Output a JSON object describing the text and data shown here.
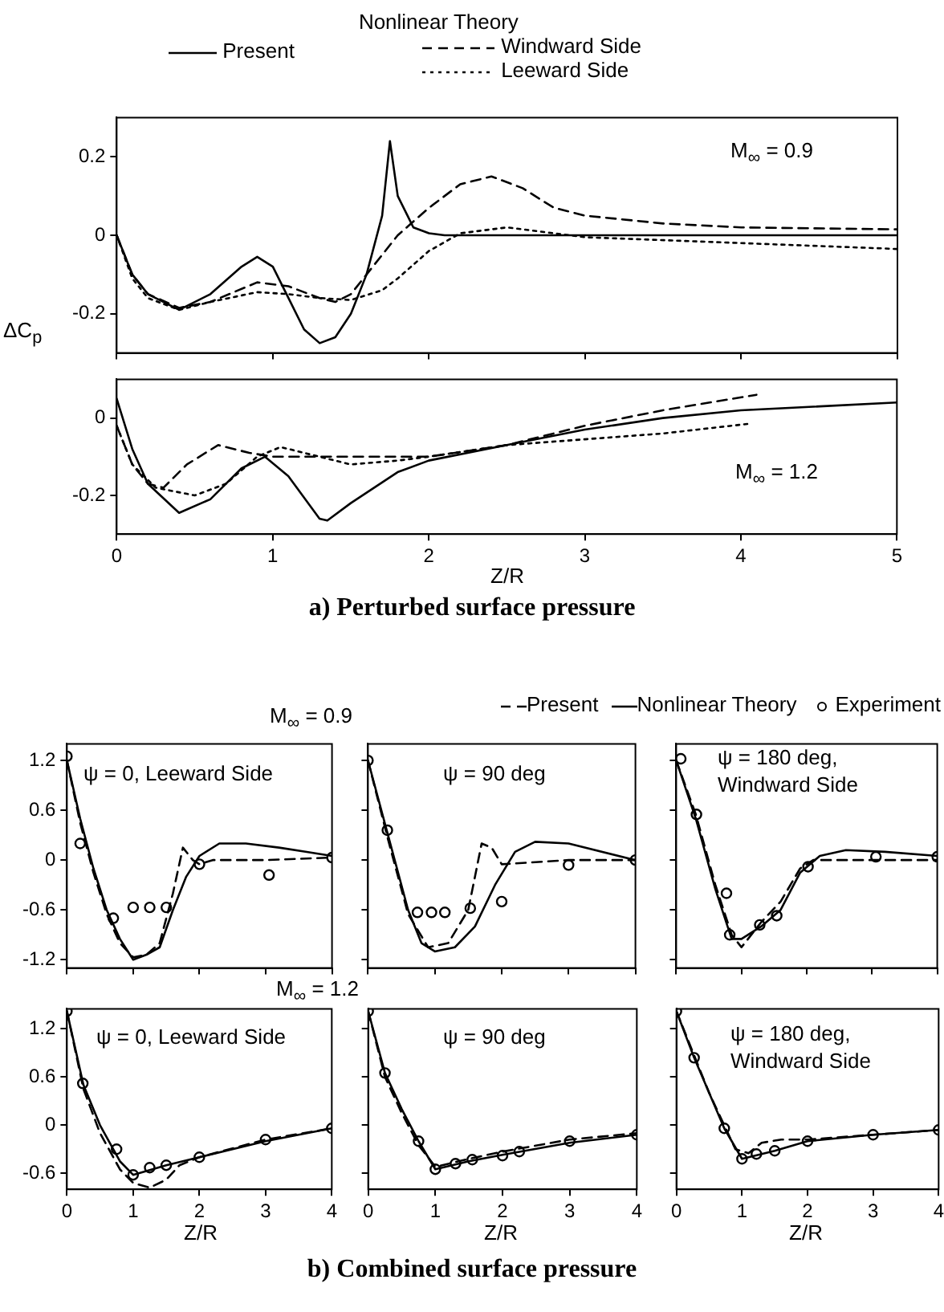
{
  "chart_data": [
    {
      "type": "line",
      "ylabel": "ΔC$_{p}$",
      "legend_title": "Nonlinear Theory",
      "legend": "top",
      "annotations": [
        "M$_{∞}$ = 0.9"
      ],
      "xlim": [
        0,
        5
      ],
      "xticks": [
        0,
        1,
        2,
        3,
        4,
        5
      ],
      "ylim": [
        -0.3,
        0.3
      ],
      "yticks": [
        -0.2,
        0,
        0.2
      ],
      "tick_labels": "y",
      "series": [
        {
          "name": "Present",
          "color": "#000000",
          "line_style": "solid",
          "x": [
            0,
            0.1,
            0.2,
            0.4,
            0.6,
            0.8,
            0.9,
            1.0,
            1.1,
            1.2,
            1.3,
            1.4,
            1.5,
            1.6,
            1.7,
            1.75,
            1.8,
            1.9,
            2.0,
            2.1,
            3,
            5
          ],
          "values": [
            0,
            -0.1,
            -0.15,
            -0.19,
            -0.15,
            -0.08,
            -0.055,
            -0.08,
            -0.16,
            -0.24,
            -0.275,
            -0.26,
            -0.2,
            -0.1,
            0.05,
            0.24,
            0.1,
            0.02,
            0.005,
            0,
            0,
            0
          ]
        },
        {
          "name": "Windward Side",
          "color": "#000000",
          "line_style": "dashed",
          "x": [
            0,
            0.1,
            0.2,
            0.4,
            0.6,
            0.9,
            1.1,
            1.3,
            1.4,
            1.5,
            1.6,
            1.8,
            2.0,
            2.2,
            2.4,
            2.6,
            2.8,
            3.0,
            3.5,
            4,
            5
          ],
          "values": [
            0,
            -0.1,
            -0.15,
            -0.185,
            -0.17,
            -0.12,
            -0.13,
            -0.16,
            -0.17,
            -0.15,
            -0.1,
            0,
            0.07,
            0.13,
            0.15,
            0.12,
            0.07,
            0.05,
            0.03,
            0.02,
            0.015
          ]
        },
        {
          "name": "Leeward Side",
          "color": "#000000",
          "line_style": "dotted",
          "x": [
            0,
            0.1,
            0.2,
            0.4,
            0.6,
            0.9,
            1.1,
            1.3,
            1.5,
            1.7,
            1.8,
            2.0,
            2.2,
            2.5,
            2.8,
            3,
            4,
            5
          ],
          "values": [
            0,
            -0.11,
            -0.16,
            -0.19,
            -0.17,
            -0.145,
            -0.15,
            -0.16,
            -0.165,
            -0.14,
            -0.11,
            -0.04,
            0.005,
            0.02,
            0.005,
            -0.005,
            -0.02,
            -0.035
          ]
        }
      ]
    },
    {
      "type": "line",
      "xlabel": "Z/R",
      "annotations": [
        "M$_{∞}$ = 1.2",
        "a) Perturbed surface pressure"
      ],
      "xlim": [
        0,
        5
      ],
      "xticks": [
        0,
        1,
        2,
        3,
        4,
        5
      ],
      "ylim": [
        -0.3,
        0.1
      ],
      "yticks": [
        -0.2,
        0
      ],
      "series": [
        {
          "color": "#000000",
          "line_style": "solid",
          "x": [
            0,
            0.1,
            0.2,
            0.4,
            0.6,
            0.8,
            0.95,
            1.1,
            1.3,
            1.35,
            1.5,
            1.8,
            2.0,
            2.5,
            3,
            3.5,
            4,
            5
          ],
          "values": [
            0.05,
            -0.08,
            -0.17,
            -0.245,
            -0.21,
            -0.13,
            -0.1,
            -0.15,
            -0.26,
            -0.265,
            -0.22,
            -0.14,
            -0.11,
            -0.07,
            -0.03,
            0,
            0.02,
            0.04
          ]
        },
        {
          "color": "#000000",
          "line_style": "dashed",
          "x": [
            0,
            0.1,
            0.2,
            0.3,
            0.45,
            0.65,
            0.85,
            1.0,
            1.2,
            1.5,
            2,
            2.5,
            3,
            3.5,
            4.1
          ],
          "values": [
            -0.02,
            -0.12,
            -0.17,
            -0.18,
            -0.12,
            -0.07,
            -0.09,
            -0.1,
            -0.1,
            -0.1,
            -0.1,
            -0.07,
            -0.02,
            0.02,
            0.06
          ]
        },
        {
          "color": "#000000",
          "line_style": "dotted",
          "x": [
            0,
            0.1,
            0.25,
            0.5,
            0.7,
            0.9,
            1.05,
            1.2,
            1.5,
            1.8,
            2.0,
            2.5,
            3,
            3.5,
            4.05
          ],
          "values": [
            -0.02,
            -0.12,
            -0.18,
            -0.2,
            -0.17,
            -0.1,
            -0.075,
            -0.09,
            -0.12,
            -0.11,
            -0.1,
            -0.07,
            -0.055,
            -0.04,
            -0.015
          ]
        }
      ]
    },
    {
      "type": "line",
      "title": "M$_{∞}$ = 0.9",
      "legend": "top right",
      "annotations": [
        "ψ = 0, Leeward Side"
      ],
      "xlim": [
        0,
        4
      ],
      "xticks": [
        0,
        1,
        2,
        3,
        4
      ],
      "ylim": [
        -1.3,
        1.4
      ],
      "yticks": [
        -1.2,
        -0.6,
        0,
        0.6,
        1.2
      ],
      "tick_labels": "y",
      "series": [
        {
          "name": "Present",
          "color": "#000000",
          "line_style": "dashed",
          "x": [
            0,
            0.2,
            0.4,
            0.6,
            0.8,
            1.0,
            1.2,
            1.4,
            1.6,
            1.75,
            1.9,
            2.0,
            2.2,
            3,
            4
          ],
          "values": [
            1.2,
            0.45,
            -0.15,
            -0.65,
            -1.0,
            -1.17,
            -1.14,
            -1.0,
            -0.4,
            0.15,
            0.0,
            -0.05,
            0.0,
            0.0,
            0.03
          ]
        },
        {
          "name": "Nonlinear Theory",
          "color": "#000000",
          "line_style": "solid",
          "x": [
            0,
            0.2,
            0.4,
            0.6,
            0.8,
            1.0,
            1.2,
            1.4,
            1.6,
            1.8,
            2.0,
            2.3,
            2.7,
            3.2,
            3.6,
            4.0
          ],
          "values": [
            1.2,
            0.5,
            -0.1,
            -0.6,
            -0.95,
            -1.2,
            -1.14,
            -1.05,
            -0.6,
            -0.2,
            0.05,
            0.2,
            0.2,
            0.15,
            0.1,
            0.05
          ]
        },
        {
          "name": "Experiment",
          "type": "scatter",
          "marker": "circle",
          "color": "#000000",
          "x": [
            0,
            0.2,
            0.7,
            1.0,
            1.25,
            1.5,
            2.0,
            3.05,
            4.0
          ],
          "values": [
            1.25,
            0.2,
            -0.7,
            -0.57,
            -0.57,
            -0.57,
            -0.05,
            -0.18,
            0.03
          ]
        }
      ]
    },
    {
      "type": "line",
      "annotations": [
        "ψ = 90 deg"
      ],
      "xlim": [
        0,
        4
      ],
      "xticks": [
        0,
        1,
        2,
        3,
        4
      ],
      "ylim": [
        -1.3,
        1.4
      ],
      "yticks": [
        -1.2,
        -0.6,
        0,
        0.6,
        1.2
      ],
      "tick_labels": false,
      "series": [
        {
          "color": "#000000",
          "line_style": "dashed",
          "x": [
            0,
            0.3,
            0.6,
            0.9,
            1.2,
            1.5,
            1.7,
            1.85,
            2.0,
            3.0,
            4
          ],
          "values": [
            1.2,
            0.25,
            -0.65,
            -1.05,
            -1.0,
            -0.6,
            0.2,
            0.15,
            -0.05,
            0.0,
            0.0
          ]
        },
        {
          "color": "#000000",
          "line_style": "solid",
          "x": [
            0,
            0.3,
            0.6,
            0.8,
            1.0,
            1.3,
            1.6,
            1.9,
            2.2,
            2.5,
            3.0,
            4
          ],
          "values": [
            1.2,
            0.3,
            -0.6,
            -1.0,
            -1.1,
            -1.05,
            -0.8,
            -0.3,
            0.1,
            0.22,
            0.2,
            0.0
          ]
        },
        {
          "type": "scatter",
          "marker": "circle",
          "color": "#000000",
          "x": [
            0,
            0.29,
            0.74,
            0.95,
            1.15,
            1.53,
            2.0,
            3.0,
            4.0
          ],
          "values": [
            1.2,
            0.36,
            -0.63,
            -0.63,
            -0.63,
            -0.58,
            -0.5,
            -0.06,
            0
          ]
        }
      ]
    },
    {
      "type": "line",
      "annotations": [
        "ψ = 180 deg, Windward Side"
      ],
      "xlim": [
        0,
        4
      ],
      "xticks": [
        0,
        1,
        2,
        3,
        4
      ],
      "ylim": [
        -1.3,
        1.4
      ],
      "yticks": [
        -1.2,
        -0.6,
        0,
        0.6,
        1.2
      ],
      "tick_labels": false,
      "series": [
        {
          "color": "#000000",
          "line_style": "dashed",
          "x": [
            0,
            0.3,
            0.6,
            0.85,
            1.0,
            1.3,
            1.6,
            1.9,
            2.1,
            3,
            4
          ],
          "values": [
            1.2,
            0.55,
            -0.3,
            -0.9,
            -1.05,
            -0.75,
            -0.5,
            -0.1,
            0.0,
            0.0,
            0.0
          ]
        },
        {
          "color": "#000000",
          "line_style": "solid",
          "x": [
            0,
            0.3,
            0.6,
            0.85,
            1.0,
            1.3,
            1.6,
            1.9,
            2.2,
            2.6,
            3.2,
            4.0
          ],
          "values": [
            1.2,
            0.5,
            -0.35,
            -0.95,
            -0.95,
            -0.8,
            -0.6,
            -0.15,
            0.05,
            0.12,
            0.1,
            0.05
          ]
        },
        {
          "type": "scatter",
          "marker": "circle",
          "color": "#000000",
          "x": [
            0.07,
            0.31,
            0.77,
            0.82,
            1.28,
            1.54,
            2.02,
            3.06,
            4.0
          ],
          "values": [
            1.22,
            0.55,
            -0.4,
            -0.9,
            -0.78,
            -0.67,
            -0.08,
            0.04,
            0.04
          ]
        }
      ]
    },
    {
      "type": "line",
      "title": "M$_{∞}$ = 1.2",
      "xlabel": "Z/R",
      "annotations": [
        "ψ = 0, Leeward Side"
      ],
      "xlim": [
        0,
        4
      ],
      "xticks": [
        0,
        1,
        2,
        3,
        4
      ],
      "ylim": [
        -0.8,
        1.45
      ],
      "yticks": [
        -0.6,
        0,
        0.6,
        1.2
      ],
      "series": [
        {
          "color": "#000000",
          "line_style": "dashed",
          "x": [
            0,
            0.25,
            0.5,
            0.8,
            1.0,
            1.25,
            1.5,
            1.7,
            2,
            3,
            4
          ],
          "values": [
            1.42,
            0.45,
            -0.1,
            -0.55,
            -0.72,
            -0.78,
            -0.68,
            -0.5,
            -0.4,
            -0.18,
            -0.04
          ]
        },
        {
          "color": "#000000",
          "line_style": "solid",
          "x": [
            0,
            0.25,
            0.5,
            0.8,
            1.0,
            1.5,
            2,
            3,
            4
          ],
          "values": [
            1.42,
            0.5,
            0.0,
            -0.45,
            -0.62,
            -0.5,
            -0.4,
            -0.2,
            -0.04
          ]
        },
        {
          "type": "scatter",
          "marker": "circle",
          "color": "#000000",
          "x": [
            0,
            0.24,
            0.75,
            1.0,
            1.25,
            1.5,
            2.0,
            3.0,
            4.0
          ],
          "values": [
            1.42,
            0.52,
            -0.3,
            -0.62,
            -0.53,
            -0.5,
            -0.4,
            -0.18,
            -0.04
          ]
        }
      ]
    },
    {
      "type": "line",
      "xlabel": "Z/R",
      "annotations": [
        "ψ = 90 deg",
        "b) Combined surface pressure"
      ],
      "xlim": [
        0,
        4
      ],
      "xticks": [
        0,
        1,
        2,
        3,
        4
      ],
      "ylim": [
        -0.8,
        1.45
      ],
      "yticks": [
        -0.6,
        0,
        0.6,
        1.2
      ],
      "tick_labels": "x",
      "series": [
        {
          "color": "#000000",
          "line_style": "dashed",
          "x": [
            0,
            0.25,
            0.5,
            0.75,
            1.0,
            1.5,
            2,
            3,
            4
          ],
          "values": [
            1.42,
            0.6,
            0.15,
            -0.25,
            -0.52,
            -0.42,
            -0.33,
            -0.18,
            -0.1
          ]
        },
        {
          "color": "#000000",
          "line_style": "solid",
          "x": [
            0,
            0.25,
            0.5,
            0.75,
            1.0,
            1.5,
            2,
            3,
            4
          ],
          "values": [
            1.42,
            0.65,
            0.2,
            -0.2,
            -0.55,
            -0.45,
            -0.37,
            -0.22,
            -0.12
          ]
        },
        {
          "type": "scatter",
          "marker": "circle",
          "color": "#000000",
          "x": [
            0,
            0.25,
            0.75,
            1.0,
            1.3,
            1.55,
            2.0,
            2.25,
            3.0,
            4.0
          ],
          "values": [
            1.42,
            0.65,
            -0.2,
            -0.55,
            -0.48,
            -0.43,
            -0.38,
            -0.33,
            -0.2,
            -0.12
          ]
        }
      ]
    },
    {
      "type": "line",
      "xlabel": "Z/R",
      "annotations": [
        "ψ = 180 deg, Windward Side"
      ],
      "xlim": [
        0,
        4
      ],
      "xticks": [
        0,
        1,
        2,
        3,
        4
      ],
      "ylim": [
        -0.8,
        1.45
      ],
      "yticks": [
        -0.6,
        0,
        0.6,
        1.2
      ],
      "tick_labels": "x",
      "series": [
        {
          "color": "#000000",
          "line_style": "dashed",
          "x": [
            0,
            0.5,
            0.9,
            1.1,
            1.3,
            1.6,
            2,
            3,
            4
          ],
          "values": [
            1.42,
            0.4,
            -0.3,
            -0.35,
            -0.22,
            -0.18,
            -0.18,
            -0.12,
            -0.06
          ]
        },
        {
          "color": "#000000",
          "line_style": "solid",
          "x": [
            0,
            0.27,
            0.73,
            1.0,
            1.5,
            2,
            3,
            4
          ],
          "values": [
            1.42,
            0.84,
            -0.04,
            -0.42,
            -0.32,
            -0.2,
            -0.12,
            -0.06
          ]
        },
        {
          "type": "scatter",
          "marker": "circle",
          "color": "#000000",
          "x": [
            0,
            0.27,
            0.73,
            1.0,
            1.22,
            1.5,
            2.0,
            3.0,
            4.0
          ],
          "values": [
            1.42,
            0.84,
            -0.04,
            -0.42,
            -0.36,
            -0.32,
            -0.2,
            -0.12,
            -0.06
          ]
        }
      ]
    }
  ]
}
